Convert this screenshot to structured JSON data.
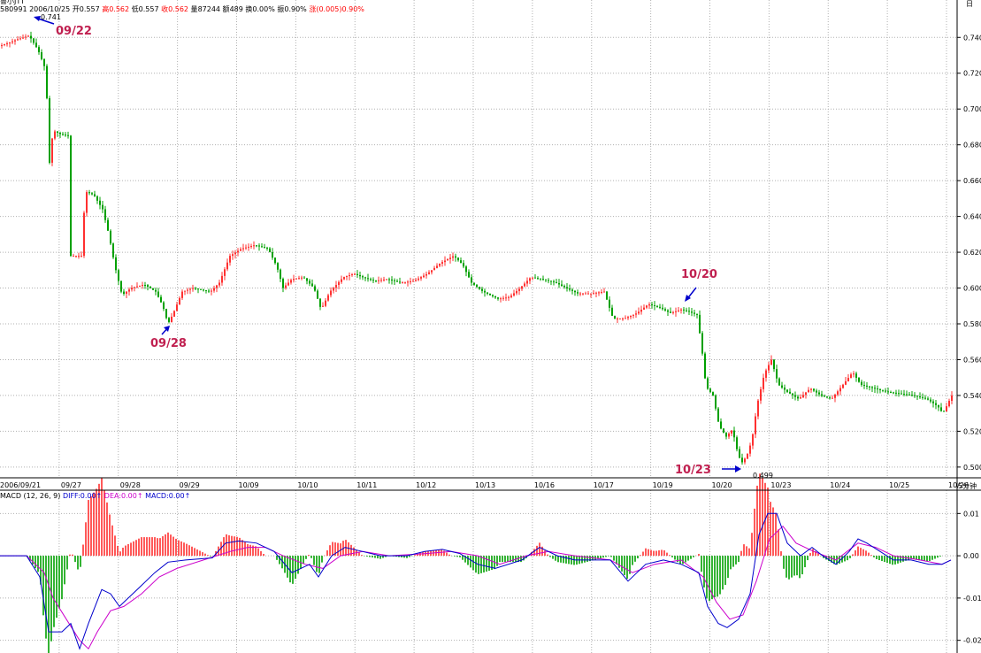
{
  "header": {
    "title_partial": "鲁小JTT",
    "code": "580991",
    "date": "2006/10/25",
    "items": [
      {
        "label": "开",
        "value": "0.557",
        "color": "#000000"
      },
      {
        "label": "高",
        "value": "0.562",
        "color": "#ff0000"
      },
      {
        "label": "低",
        "value": "0.557",
        "color": "#000000"
      },
      {
        "label": "收",
        "value": "0.562",
        "color": "#ff0000"
      },
      {
        "label": "量",
        "value": "87244",
        "color": "#000000"
      },
      {
        "label": "额",
        "value": "489",
        "color": "#000000"
      },
      {
        "label": "换",
        "value": "0.00%",
        "color": "#000000"
      },
      {
        "label": "振",
        "value": "0.90%",
        "color": "#000000"
      },
      {
        "label": "涨",
        "value": "(0.005)0.90%",
        "color": "#ff0000"
      }
    ]
  },
  "corner_label": "日",
  "period_label": "5分钟",
  "macd_legend": {
    "name": "MACD (12, 26, 9)",
    "diff": "DIFF:0.00",
    "dea": "DEA:0.00",
    "macd": "MACD:0.00"
  },
  "annotations": {
    "high": "0.741",
    "low": "0.499",
    "d0922": "09/22",
    "d0928": "09/28",
    "d1020": "10/20",
    "d1023": "10/23"
  },
  "colors": {
    "up": "#ff3030",
    "down": "#00a000",
    "diff": "#0000cc",
    "dea": "#cc00cc",
    "annotation": "#c02050",
    "arrow": "#0000cc"
  },
  "chart_data": {
    "type": "candlestick",
    "price_axis": {
      "ticks": [
        "0.740",
        "0.720",
        "0.700",
        "0.680",
        "0.660",
        "0.640",
        "0.620",
        "0.600",
        "0.580",
        "0.560",
        "0.540",
        "0.520",
        "0.500"
      ],
      "range": [
        0.494,
        0.752
      ]
    },
    "macd_axis": {
      "ticks": [
        "0.01",
        "0.00",
        "-0.01",
        "-0.02"
      ],
      "range": [
        -0.023,
        0.013
      ]
    },
    "date_labels": [
      "2006/09/21",
      "09/27",
      "09/28",
      "09/29",
      "10/09",
      "10/10",
      "10/11",
      "10/12",
      "10/13",
      "10/16",
      "10/17",
      "10/19",
      "10/20",
      "10/23",
      "10/24",
      "10/25",
      "10/26"
    ],
    "price_path": [
      [
        0,
        0.735
      ],
      [
        12,
        0.737
      ],
      [
        22,
        0.739
      ],
      [
        35,
        0.741
      ],
      [
        45,
        0.733
      ],
      [
        52,
        0.724
      ],
      [
        56,
        0.7
      ],
      [
        58,
        0.67
      ],
      [
        62,
        0.688
      ],
      [
        70,
        0.686
      ],
      [
        80,
        0.685
      ],
      [
        82,
        0.618
      ],
      [
        95,
        0.618
      ],
      [
        98,
        0.654
      ],
      [
        108,
        0.652
      ],
      [
        118,
        0.644
      ],
      [
        125,
        0.63
      ],
      [
        132,
        0.612
      ],
      [
        140,
        0.596
      ],
      [
        150,
        0.6
      ],
      [
        165,
        0.602
      ],
      [
        178,
        0.598
      ],
      [
        186,
        0.59
      ],
      [
        192,
        0.58
      ],
      [
        198,
        0.586
      ],
      [
        208,
        0.598
      ],
      [
        220,
        0.6
      ],
      [
        240,
        0.598
      ],
      [
        250,
        0.603
      ],
      [
        262,
        0.618
      ],
      [
        275,
        0.622
      ],
      [
        290,
        0.624
      ],
      [
        305,
        0.622
      ],
      [
        315,
        0.612
      ],
      [
        322,
        0.6
      ],
      [
        332,
        0.605
      ],
      [
        345,
        0.606
      ],
      [
        357,
        0.6
      ],
      [
        365,
        0.588
      ],
      [
        375,
        0.598
      ],
      [
        390,
        0.606
      ],
      [
        402,
        0.608
      ],
      [
        412,
        0.606
      ],
      [
        425,
        0.604
      ],
      [
        440,
        0.605
      ],
      [
        455,
        0.603
      ],
      [
        470,
        0.604
      ],
      [
        485,
        0.608
      ],
      [
        500,
        0.614
      ],
      [
        515,
        0.618
      ],
      [
        525,
        0.613
      ],
      [
        535,
        0.603
      ],
      [
        548,
        0.598
      ],
      [
        565,
        0.594
      ],
      [
        578,
        0.595
      ],
      [
        590,
        0.6
      ],
      [
        602,
        0.606
      ],
      [
        615,
        0.605
      ],
      [
        630,
        0.603
      ],
      [
        642,
        0.6
      ],
      [
        655,
        0.597
      ],
      [
        670,
        0.597
      ],
      [
        685,
        0.598
      ],
      [
        695,
        0.583
      ],
      [
        708,
        0.583
      ],
      [
        722,
        0.586
      ],
      [
        735,
        0.591
      ],
      [
        748,
        0.589
      ],
      [
        760,
        0.586
      ],
      [
        772,
        0.588
      ],
      [
        780,
        0.587
      ],
      [
        790,
        0.585
      ],
      [
        795,
        0.568
      ],
      [
        800,
        0.545
      ],
      [
        808,
        0.54
      ],
      [
        815,
        0.523
      ],
      [
        823,
        0.517
      ],
      [
        830,
        0.521
      ],
      [
        835,
        0.51
      ],
      [
        840,
        0.502
      ],
      [
        846,
        0.506
      ],
      [
        852,
        0.515
      ],
      [
        858,
        0.535
      ],
      [
        866,
        0.552
      ],
      [
        874,
        0.56
      ],
      [
        882,
        0.546
      ],
      [
        892,
        0.542
      ],
      [
        905,
        0.538
      ],
      [
        918,
        0.544
      ],
      [
        930,
        0.54
      ],
      [
        942,
        0.538
      ],
      [
        955,
        0.546
      ],
      [
        966,
        0.553
      ],
      [
        975,
        0.546
      ],
      [
        990,
        0.544
      ],
      [
        1005,
        0.542
      ],
      [
        1020,
        0.541
      ],
      [
        1035,
        0.54
      ],
      [
        1050,
        0.538
      ],
      [
        1062,
        0.534
      ],
      [
        1068,
        0.53
      ],
      [
        1074,
        0.536
      ],
      [
        1078,
        0.54
      ]
    ],
    "diff_path": [
      [
        0,
        0.0
      ],
      [
        30,
        0.0
      ],
      [
        45,
        -0.005
      ],
      [
        55,
        -0.018
      ],
      [
        70,
        -0.018
      ],
      [
        80,
        -0.016
      ],
      [
        90,
        -0.022
      ],
      [
        100,
        -0.016
      ],
      [
        115,
        -0.008
      ],
      [
        125,
        -0.009
      ],
      [
        135,
        -0.012
      ],
      [
        145,
        -0.01
      ],
      [
        160,
        -0.007
      ],
      [
        175,
        -0.004
      ],
      [
        190,
        -0.0015
      ],
      [
        210,
        -0.001
      ],
      [
        240,
        -0.0005
      ],
      [
        255,
        0.003
      ],
      [
        270,
        0.0035
      ],
      [
        290,
        0.003
      ],
      [
        310,
        0.001
      ],
      [
        330,
        -0.004
      ],
      [
        350,
        -0.002
      ],
      [
        360,
        -0.005
      ],
      [
        375,
        0.0
      ],
      [
        390,
        0.002
      ],
      [
        410,
        0.001
      ],
      [
        430,
        0.0
      ],
      [
        460,
        0.0
      ],
      [
        480,
        0.001
      ],
      [
        500,
        0.0015
      ],
      [
        520,
        0.0005
      ],
      [
        540,
        -0.002
      ],
      [
        560,
        -0.003
      ],
      [
        590,
        -0.001
      ],
      [
        610,
        0.002
      ],
      [
        630,
        0.0
      ],
      [
        650,
        -0.001
      ],
      [
        670,
        -0.001
      ],
      [
        690,
        -0.001
      ],
      [
        710,
        -0.006
      ],
      [
        730,
        -0.002
      ],
      [
        750,
        -0.001
      ],
      [
        770,
        -0.002
      ],
      [
        790,
        -0.004
      ],
      [
        800,
        -0.012
      ],
      [
        812,
        -0.016
      ],
      [
        822,
        -0.017
      ],
      [
        835,
        -0.015
      ],
      [
        848,
        -0.009
      ],
      [
        858,
        0.005
      ],
      [
        868,
        0.01
      ],
      [
        878,
        0.01
      ],
      [
        890,
        0.003
      ],
      [
        905,
        0.0
      ],
      [
        918,
        0.002
      ],
      [
        930,
        0.0
      ],
      [
        945,
        -0.002
      ],
      [
        960,
        0.001
      ],
      [
        970,
        0.004
      ],
      [
        980,
        0.003
      ],
      [
        995,
        0.001
      ],
      [
        1010,
        -0.001
      ],
      [
        1030,
        -0.001
      ],
      [
        1050,
        -0.002
      ],
      [
        1065,
        -0.002
      ],
      [
        1075,
        -0.001
      ]
    ],
    "dea_path": [
      [
        0,
        0.0
      ],
      [
        30,
        0.0
      ],
      [
        50,
        -0.004
      ],
      [
        60,
        -0.01
      ],
      [
        75,
        -0.015
      ],
      [
        90,
        -0.02
      ],
      [
        100,
        -0.022
      ],
      [
        110,
        -0.018
      ],
      [
        125,
        -0.013
      ],
      [
        140,
        -0.012
      ],
      [
        160,
        -0.009
      ],
      [
        180,
        -0.005
      ],
      [
        200,
        -0.003
      ],
      [
        230,
        -0.001
      ],
      [
        260,
        0.001
      ],
      [
        280,
        0.002
      ],
      [
        300,
        0.002
      ],
      [
        320,
        0.0
      ],
      [
        345,
        -0.002
      ],
      [
        365,
        -0.003
      ],
      [
        385,
        0.0
      ],
      [
        410,
        0.001
      ],
      [
        440,
        0.0
      ],
      [
        480,
        0.0005
      ],
      [
        510,
        0.001
      ],
      [
        540,
        0.0
      ],
      [
        565,
        -0.002
      ],
      [
        595,
        0.0
      ],
      [
        620,
        0.001
      ],
      [
        650,
        0.0
      ],
      [
        690,
        -0.001
      ],
      [
        715,
        -0.004
      ],
      [
        740,
        -0.002
      ],
      [
        770,
        -0.001
      ],
      [
        795,
        -0.005
      ],
      [
        810,
        -0.011
      ],
      [
        825,
        -0.015
      ],
      [
        840,
        -0.014
      ],
      [
        855,
        -0.006
      ],
      [
        870,
        0.004
      ],
      [
        885,
        0.007
      ],
      [
        900,
        0.003
      ],
      [
        920,
        0.001
      ],
      [
        945,
        -0.001
      ],
      [
        970,
        0.003
      ],
      [
        990,
        0.002
      ],
      [
        1010,
        0.0
      ],
      [
        1040,
        -0.001
      ],
      [
        1065,
        -0.002
      ],
      [
        1075,
        -0.001
      ]
    ]
  }
}
